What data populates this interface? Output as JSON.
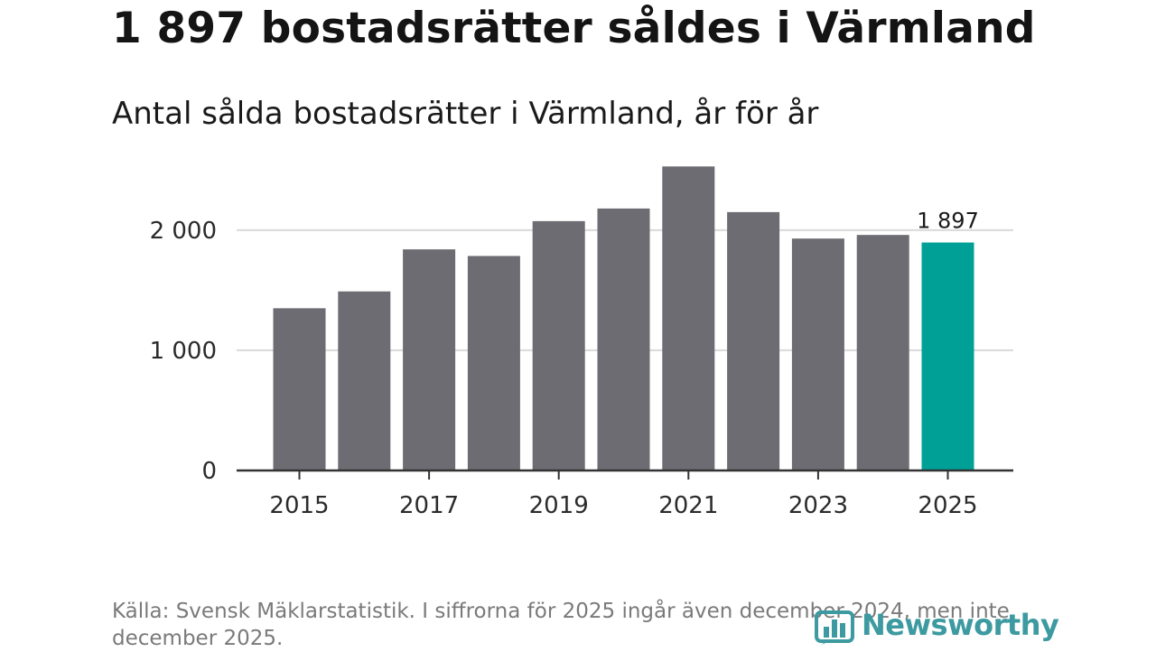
{
  "header": {
    "title": "1 897 bostadsrätter såldes i Värmland",
    "subtitle": "Antal sålda bostadsrätter i Värmland, år för år"
  },
  "chart_data": {
    "type": "bar",
    "title": "1 897 bostadsrätter såldes i Värmland",
    "subtitle": "Antal sålda bostadsrätter i Värmland, år för år",
    "categories": [
      2015,
      2016,
      2017,
      2018,
      2019,
      2020,
      2021,
      2022,
      2023,
      2024,
      2025
    ],
    "values": [
      1350,
      1490,
      1840,
      1785,
      2075,
      2180,
      2530,
      2150,
      1930,
      1960,
      1897
    ],
    "x_tick_labels": [
      "2015",
      "2017",
      "2019",
      "2021",
      "2023",
      "2025"
    ],
    "y_ticks": [
      0,
      1000,
      2000
    ],
    "y_tick_labels": [
      "0",
      "1 000",
      "2 000"
    ],
    "ylim": [
      0,
      2600
    ],
    "grid": true,
    "xlabel": "",
    "ylabel": "",
    "bar_color": "#6d6c72",
    "highlight_color": "#00a097",
    "highlight_index": 10,
    "annotation": {
      "index": 10,
      "text": "1 897"
    }
  },
  "footer": {
    "source_note": "Källa: Svensk Mäklarstatistik. I siffrorna för 2025 ingår även december 2024, men inte december 2025.",
    "brand": "Newsworthy",
    "brand_icon": "bar-chart-icon",
    "brand_color": "#3c9aa0"
  }
}
